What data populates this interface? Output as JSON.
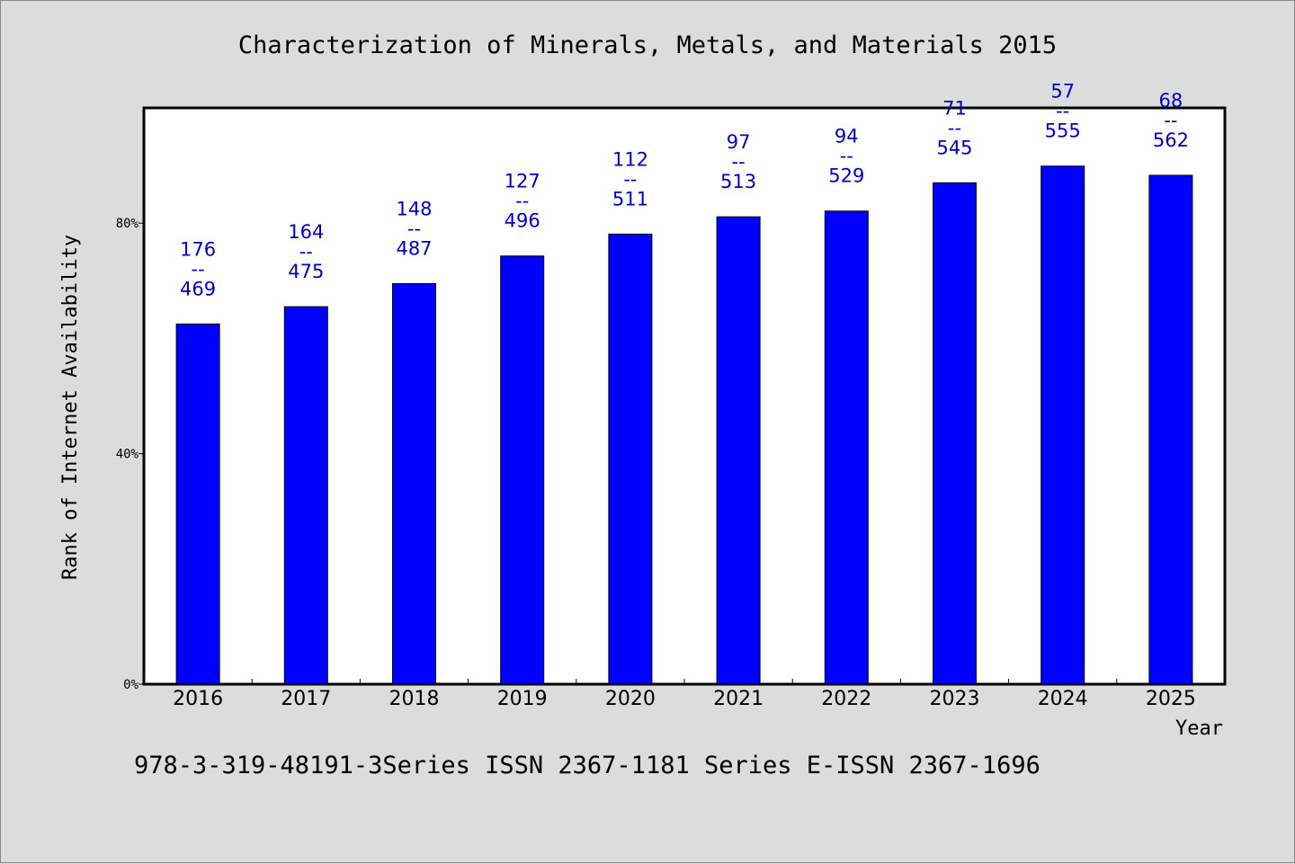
{
  "footnote": "978-3-319-48191-3Series ISSN 2367-1181 Series E-ISSN 2367-1696",
  "colors": {
    "background": "#dcdcdc",
    "plot_background": "#ffffff",
    "bar": "#0000ff",
    "bar_label": "#0000cc"
  },
  "chart_data": {
    "type": "bar",
    "title": "Characterization of Minerals, Metals, and Materials 2015",
    "xlabel": "Year",
    "ylabel": "Rank of Internet Availability",
    "ylim": [
      0,
      100
    ],
    "yticks": [
      0,
      40,
      80
    ],
    "ytick_labels": [
      "0%",
      "40%",
      "80%"
    ],
    "grid": false,
    "categories": [
      "2016",
      "2017",
      "2018",
      "2019",
      "2020",
      "2021",
      "2022",
      "2023",
      "2024",
      "2025"
    ],
    "values": [
      62.5,
      65.5,
      69.5,
      74.3,
      78.1,
      81.1,
      82.1,
      87.0,
      89.9,
      88.3
    ],
    "bar_labels": [
      {
        "rank": "176",
        "separator": "--",
        "total": "469"
      },
      {
        "rank": "164",
        "separator": "--",
        "total": "475"
      },
      {
        "rank": "148",
        "separator": "--",
        "total": "487"
      },
      {
        "rank": "127",
        "separator": "--",
        "total": "496"
      },
      {
        "rank": "112",
        "separator": "--",
        "total": "511"
      },
      {
        "rank": "97",
        "separator": "--",
        "total": "513"
      },
      {
        "rank": "94",
        "separator": "--",
        "total": "529"
      },
      {
        "rank": "71",
        "separator": "--",
        "total": "545"
      },
      {
        "rank": "57",
        "separator": "--",
        "total": "555"
      },
      {
        "rank": "68",
        "separator": "--",
        "total": "562"
      }
    ]
  }
}
